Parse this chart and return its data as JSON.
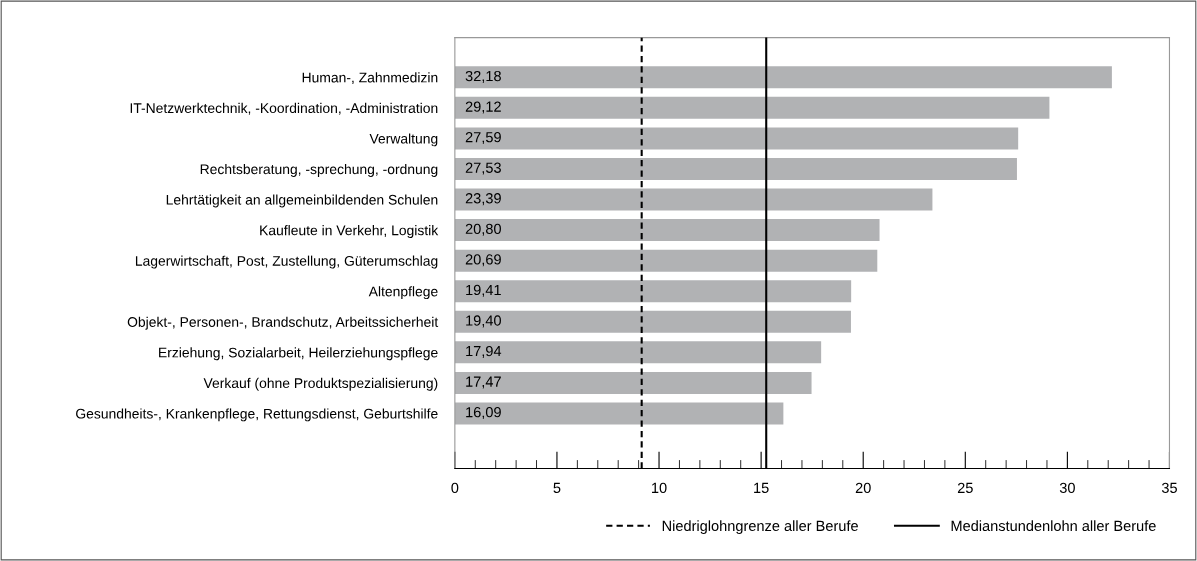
{
  "chart_data": {
    "type": "bar",
    "orientation": "horizontal",
    "categories": [
      "Human-, Zahnmedizin",
      "IT-Netzwerktechnik, -Koordination, -Administration",
      "Verwaltung",
      "Rechtsberatung, -sprechung, -ordnung",
      "Lehrtätigkeit an allgemeinbildenden Schulen",
      "Kaufleute in Verkehr, Logistik",
      "Lagerwirtschaft, Post, Zustellung, Güterumschlag",
      "Altenpflege",
      "Objekt-, Personen-, Brandschutz, Arbeitssicherheit",
      "Erziehung, Sozialarbeit, Heilerziehungspflege",
      "Verkauf (ohne Produktspezialisierung)",
      "Gesundheits-, Krankenpflege, Rettungsdienst, Geburtshilfe"
    ],
    "values": [
      32.18,
      29.12,
      27.59,
      27.53,
      23.39,
      20.8,
      20.69,
      19.41,
      19.4,
      17.94,
      17.47,
      16.09
    ],
    "value_labels": [
      "32,18",
      "29,12",
      "27,59",
      "27,53",
      "23,39",
      "20,80",
      "20,69",
      "19,41",
      "19,40",
      "17,94",
      "17,47",
      "16,09"
    ],
    "color": "#b1b2b4",
    "xlim": [
      0,
      35
    ],
    "xticks": [
      0,
      5,
      10,
      15,
      20,
      25,
      30,
      35
    ],
    "ref_lines": [
      {
        "axis": "x",
        "value": 9.15,
        "label": "Niedriglohngrenze aller Berufe",
        "color": "#000000",
        "line_style": "dashed"
      },
      {
        "axis": "x",
        "value": 15.25,
        "label": "Medianstundenlohn aller Berufe",
        "color": "#000000",
        "line_style": "solid"
      }
    ],
    "legend": "bottom right",
    "grid": false
  }
}
